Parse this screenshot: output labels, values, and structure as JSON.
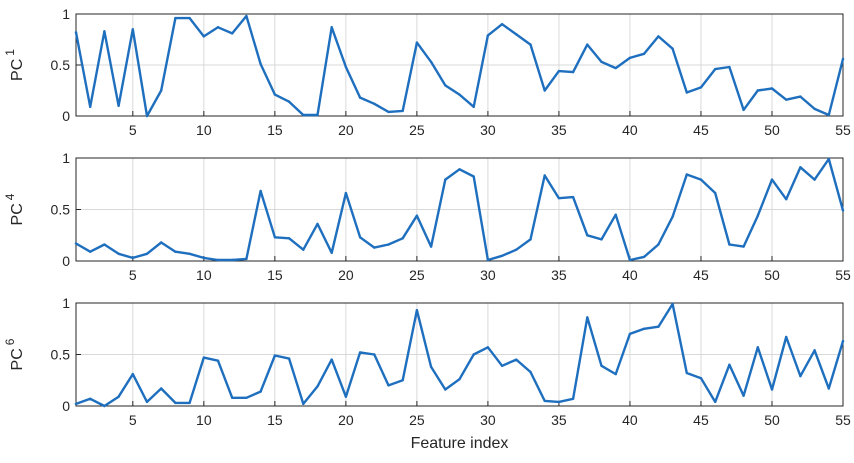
{
  "chart_data": [
    {
      "type": "line",
      "ylabel": "PC",
      "ylabel_sub": "1",
      "xlabel": "",
      "xlim": [
        1,
        55
      ],
      "ylim": [
        0,
        1
      ],
      "grid": true,
      "xticks": [
        5,
        10,
        15,
        20,
        25,
        30,
        35,
        40,
        45,
        50,
        55
      ],
      "yticks": [
        0,
        0.5,
        1
      ],
      "ytick_labels": [
        "0",
        "0.5",
        "1"
      ],
      "x": [
        1,
        2,
        3,
        4,
        5,
        6,
        7,
        8,
        9,
        10,
        11,
        12,
        13,
        14,
        15,
        16,
        17,
        18,
        19,
        20,
        21,
        22,
        23,
        24,
        25,
        26,
        27,
        28,
        29,
        30,
        31,
        32,
        33,
        34,
        35,
        36,
        37,
        38,
        39,
        40,
        41,
        42,
        43,
        44,
        45,
        46,
        47,
        48,
        49,
        50,
        51,
        52,
        53,
        54,
        55
      ],
      "series": [
        {
          "values": [
            0.82,
            0.09,
            0.83,
            0.1,
            0.85,
            0.0,
            0.25,
            0.96,
            0.96,
            0.78,
            0.87,
            0.81,
            0.98,
            0.51,
            0.21,
            0.14,
            0.01,
            0.01,
            0.87,
            0.48,
            0.18,
            0.12,
            0.04,
            0.05,
            0.72,
            0.53,
            0.3,
            0.21,
            0.09,
            0.79,
            0.9,
            0.8,
            0.7,
            0.25,
            0.44,
            0.43,
            0.7,
            0.53,
            0.47,
            0.57,
            0.61,
            0.78,
            0.66,
            0.23,
            0.28,
            0.46,
            0.48,
            0.06,
            0.25,
            0.27,
            0.16,
            0.19,
            0.07,
            0.01,
            0.56
          ]
        }
      ]
    },
    {
      "type": "line",
      "ylabel": "PC",
      "ylabel_sub": "4",
      "xlabel": "",
      "xlim": [
        1,
        55
      ],
      "ylim": [
        0,
        1
      ],
      "grid": true,
      "xticks": [
        5,
        10,
        15,
        20,
        25,
        30,
        35,
        40,
        45,
        50,
        55
      ],
      "yticks": [
        0,
        0.5,
        1
      ],
      "ytick_labels": [
        "0",
        "0.5",
        "1"
      ],
      "x": [
        1,
        2,
        3,
        4,
        5,
        6,
        7,
        8,
        9,
        10,
        11,
        12,
        13,
        14,
        15,
        16,
        17,
        18,
        19,
        20,
        21,
        22,
        23,
        24,
        25,
        26,
        27,
        28,
        29,
        30,
        31,
        32,
        33,
        34,
        35,
        36,
        37,
        38,
        39,
        40,
        41,
        42,
        43,
        44,
        45,
        46,
        47,
        48,
        49,
        50,
        51,
        52,
        53,
        54,
        55
      ],
      "series": [
        {
          "values": [
            0.17,
            0.09,
            0.16,
            0.07,
            0.03,
            0.07,
            0.18,
            0.09,
            0.07,
            0.03,
            0.01,
            0.01,
            0.02,
            0.68,
            0.23,
            0.22,
            0.11,
            0.36,
            0.08,
            0.66,
            0.23,
            0.13,
            0.16,
            0.22,
            0.44,
            0.14,
            0.79,
            0.89,
            0.82,
            0.01,
            0.05,
            0.11,
            0.21,
            0.83,
            0.61,
            0.62,
            0.25,
            0.21,
            0.45,
            0.01,
            0.04,
            0.16,
            0.43,
            0.84,
            0.79,
            0.66,
            0.16,
            0.14,
            0.44,
            0.79,
            0.6,
            0.91,
            0.79,
            0.99,
            0.49
          ]
        }
      ]
    },
    {
      "type": "line",
      "ylabel": "PC",
      "ylabel_sub": "6",
      "xlabel": "Feature index",
      "xlim": [
        1,
        55
      ],
      "ylim": [
        0,
        1
      ],
      "grid": true,
      "xticks": [
        5,
        10,
        15,
        20,
        25,
        30,
        35,
        40,
        45,
        50,
        55
      ],
      "yticks": [
        0,
        0.5,
        1
      ],
      "ytick_labels": [
        "0",
        "0.5",
        "1"
      ],
      "x": [
        1,
        2,
        3,
        4,
        5,
        6,
        7,
        8,
        9,
        10,
        11,
        12,
        13,
        14,
        15,
        16,
        17,
        18,
        19,
        20,
        21,
        22,
        23,
        24,
        25,
        26,
        27,
        28,
        29,
        30,
        31,
        32,
        33,
        34,
        35,
        36,
        37,
        38,
        39,
        40,
        41,
        42,
        43,
        44,
        45,
        46,
        47,
        48,
        49,
        50,
        51,
        52,
        53,
        54,
        55
      ],
      "series": [
        {
          "values": [
            0.02,
            0.07,
            0.0,
            0.09,
            0.31,
            0.04,
            0.17,
            0.03,
            0.03,
            0.47,
            0.44,
            0.08,
            0.08,
            0.14,
            0.49,
            0.46,
            0.02,
            0.19,
            0.45,
            0.09,
            0.52,
            0.5,
            0.2,
            0.25,
            0.93,
            0.38,
            0.16,
            0.26,
            0.5,
            0.57,
            0.39,
            0.45,
            0.33,
            0.05,
            0.04,
            0.07,
            0.86,
            0.39,
            0.31,
            0.7,
            0.75,
            0.77,
            0.99,
            0.32,
            0.27,
            0.04,
            0.4,
            0.1,
            0.57,
            0.16,
            0.67,
            0.29,
            0.54,
            0.17,
            0.63
          ]
        }
      ]
    }
  ],
  "colors": {
    "series": "#1f6fbf",
    "axis": "#262626",
    "grid": "#d9d9d9"
  }
}
